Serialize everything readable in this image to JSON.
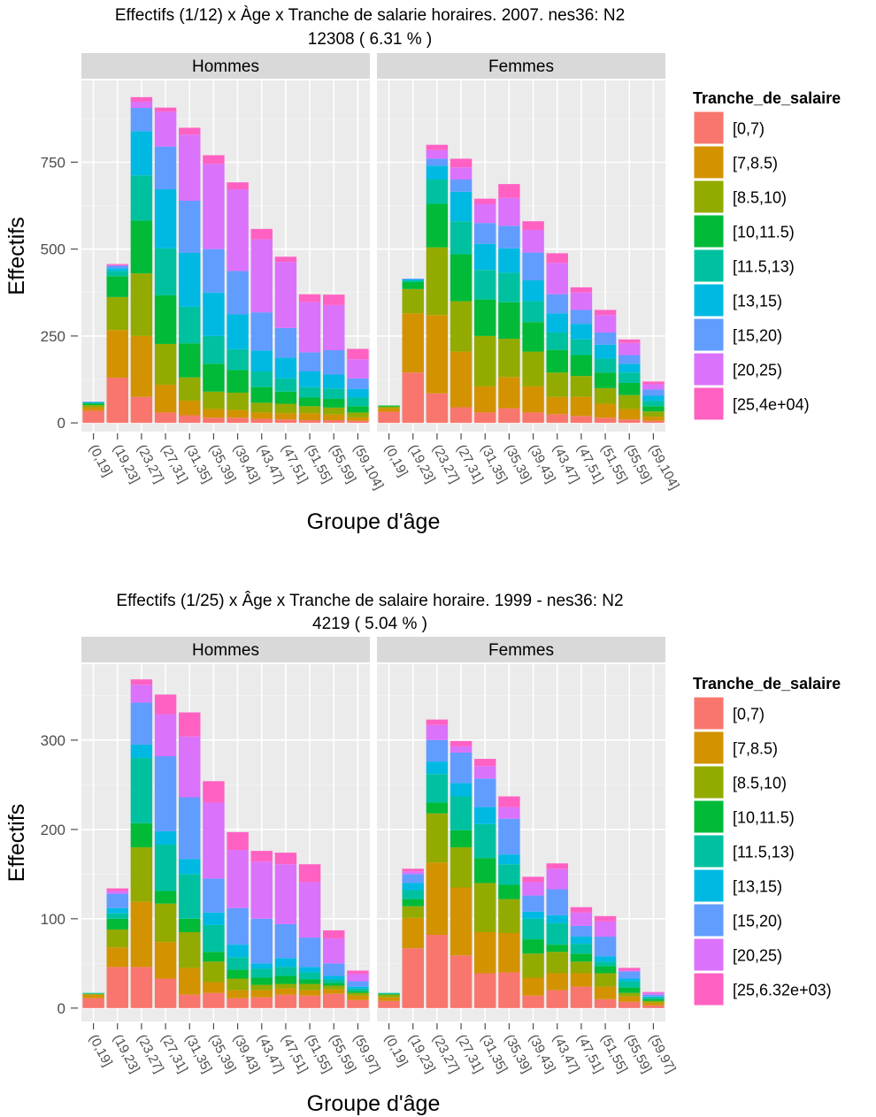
{
  "chart_data": [
    {
      "type": "bar",
      "stacked": true,
      "title_line1": "Effectifs (1/12) x Àge x Tranche de salarie horaires. 2007. nes36:  N2",
      "title_line2": "12308 ( 6.31 % )",
      "xlabel": "Groupe d'âge",
      "ylabel": "Effectifs",
      "yticks": [
        0,
        250,
        500,
        750
      ],
      "ylim": [
        -25,
        985
      ],
      "legend_title": "Tranche_de_salaire",
      "legend_position": "right",
      "categories": [
        "(0,19]",
        "(19,23]",
        "(23,27]",
        "(27,31]",
        "(31,35]",
        "(35,39]",
        "(39,43]",
        "(43,47]",
        "(47,51]",
        "(51,55]",
        "(55,59]",
        "(59,104]"
      ],
      "series_labels": [
        "[0,7)",
        "[7,8.5)",
        "[8.5,10)",
        "[10,11.5)",
        "[11.5,13)",
        "[13,15)",
        "[15,20)",
        "[20,25)",
        "[25,4e+04)"
      ],
      "colors": [
        "#F8766D",
        "#D39200",
        "#93AA00",
        "#00BA38",
        "#00C19F",
        "#00B9E3",
        "#619CFF",
        "#DB72FB",
        "#FF61C3"
      ],
      "panels": [
        {
          "name": "Hommes",
          "values": [
            [
              35,
              10,
              6,
              5,
              3,
              0,
              2,
              0,
              0
            ],
            [
              130,
              137,
              95,
              60,
              15,
              8,
              7,
              2,
              3
            ],
            [
              75,
              175,
              180,
              152,
              130,
              127,
              67,
              18,
              13
            ],
            [
              30,
              80,
              117,
              140,
              135,
              170,
              123,
              100,
              12
            ],
            [
              22,
              42,
              67,
              98,
              105,
              155,
              150,
              190,
              20
            ],
            [
              15,
              25,
              50,
              80,
              80,
              125,
              125,
              245,
              25
            ],
            [
              15,
              22,
              50,
              65,
              60,
              100,
              125,
              235,
              20
            ],
            [
              12,
              18,
              28,
              45,
              45,
              60,
              110,
              210,
              30
            ],
            [
              10,
              18,
              27,
              35,
              38,
              60,
              85,
              190,
              15
            ],
            [
              8,
              20,
              20,
              25,
              30,
              45,
              55,
              145,
              22
            ],
            [
              8,
              16,
              20,
              25,
              30,
              40,
              70,
              130,
              30
            ],
            [
              6,
              10,
              14,
              18,
              25,
              25,
              30,
              55,
              30
            ]
          ]
        },
        {
          "name": "Femmes",
          "values": [
            [
              32,
              10,
              5,
              3,
              0,
              0,
              0,
              0,
              0
            ],
            [
              145,
              170,
              70,
              20,
              5,
              3,
              2,
              0,
              0
            ],
            [
              85,
              225,
              195,
              125,
              70,
              40,
              20,
              25,
              15
            ],
            [
              45,
              160,
              145,
              135,
              95,
              85,
              35,
              35,
              25
            ],
            [
              30,
              75,
              145,
              105,
              85,
              75,
              60,
              55,
              15
            ],
            [
              42,
              90,
              110,
              105,
              85,
              70,
              65,
              80,
              40
            ],
            [
              30,
              75,
              100,
              85,
              60,
              60,
              80,
              65,
              25
            ],
            [
              25,
              50,
              70,
              65,
              50,
              55,
              55,
              90,
              28
            ],
            [
              20,
              55,
              60,
              60,
              45,
              45,
              40,
              50,
              15
            ],
            [
              15,
              40,
              45,
              45,
              40,
              40,
              35,
              50,
              15
            ],
            [
              10,
              30,
              40,
              35,
              30,
              25,
              25,
              35,
              10
            ],
            [
              6,
              12,
              15,
              15,
              15,
              15,
              18,
              15,
              8
            ]
          ]
        }
      ]
    },
    {
      "type": "bar",
      "stacked": true,
      "title_line1": "Effectifs  (1/25) x Âge x Tranche de salaire horaire. 1999 -  nes36:  N2",
      "title_line2": "4219 ( 5.04 % )",
      "xlabel": "Groupe d'âge",
      "ylabel": "Effectifs",
      "yticks": [
        0,
        100,
        200,
        300
      ],
      "ylim": [
        -15,
        385
      ],
      "legend_title": "Tranche_de_salaire",
      "legend_position": "right",
      "categories": [
        "(0,19]",
        "(19,23]",
        "(23,27]",
        "(27,31]",
        "(31,35]",
        "(35,39]",
        "(39,43]",
        "(43,47]",
        "(47,51]",
        "(51,55]",
        "(55,59]",
        "(59,97]"
      ],
      "series_labels": [
        "[0,7)",
        "[7,8.5)",
        "[8.5,10)",
        "[10,11.5)",
        "[11.5,13)",
        "[13,15)",
        "[15,20)",
        "[20,25)",
        "[25,6.32e+03)"
      ],
      "colors": [
        "#F8766D",
        "#D39200",
        "#93AA00",
        "#00BA38",
        "#00C19F",
        "#00B9E3",
        "#619CFF",
        "#DB72FB",
        "#FF61C3"
      ],
      "panels": [
        {
          "name": "Hommes",
          "values": [
            [
              11,
              4,
              1,
              0,
              1,
              0,
              0,
              0,
              0
            ],
            [
              46,
              22,
              20,
              12,
              6,
              6,
              16,
              3,
              3
            ],
            [
              46,
              73,
              61,
              27,
              73,
              15,
              47,
              20,
              6
            ],
            [
              33,
              41,
              43,
              14,
              52,
              15,
              84,
              47,
              22
            ],
            [
              15,
              30,
              40,
              15,
              50,
              17,
              69,
              68,
              27
            ],
            [
              17,
              12,
              23,
              11,
              30,
              14,
              38,
              85,
              24
            ],
            [
              11,
              9,
              13,
              10,
              14,
              14,
              41,
              65,
              20
            ],
            [
              12,
              8,
              6,
              8,
              10,
              6,
              50,
              64,
              12
            ],
            [
              15,
              7,
              5,
              9,
              10,
              10,
              38,
              67,
              13
            ],
            [
              14,
              6,
              7,
              5,
              8,
              6,
              33,
              62,
              20
            ],
            [
              16,
              5,
              4,
              3,
              4,
              4,
              14,
              28,
              9
            ],
            [
              9,
              5,
              3,
              2,
              3,
              2,
              6,
              8,
              4
            ]
          ]
        },
        {
          "name": "Femmes",
          "values": [
            [
              8,
              4,
              3,
              1,
              1,
              0,
              0,
              0,
              0
            ],
            [
              67,
              34,
              13,
              8,
              10,
              8,
              10,
              3,
              3
            ],
            [
              82,
              81,
              55,
              12,
              32,
              14,
              24,
              17,
              6
            ],
            [
              59,
              76,
              45,
              19,
              38,
              15,
              34,
              7,
              6
            ],
            [
              39,
              46,
              55,
              28,
              38,
              19,
              32,
              14,
              8
            ],
            [
              40,
              44,
              38,
              16,
              23,
              11,
              40,
              13,
              12
            ],
            [
              14,
              20,
              27,
              16,
              23,
              8,
              18,
              15,
              6
            ],
            [
              20,
              19,
              24,
              8,
              24,
              9,
              29,
              23,
              6
            ],
            [
              24,
              15,
              13,
              9,
              11,
              8,
              12,
              15,
              6
            ],
            [
              10,
              14,
              15,
              8,
              5,
              6,
              22,
              17,
              6
            ],
            [
              7,
              6,
              4,
              6,
              7,
              3,
              8,
              1,
              3
            ],
            [
              3,
              3,
              2,
              2,
              2,
              1,
              2,
              2,
              1
            ]
          ]
        }
      ]
    }
  ]
}
